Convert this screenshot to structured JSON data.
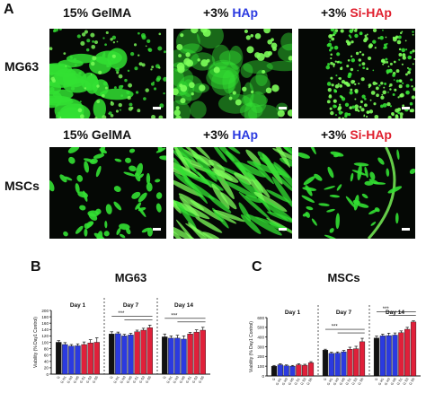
{
  "panel_a": {
    "letter": "A",
    "columns": [
      {
        "prefix": "15% GelMA",
        "highlight": "",
        "highlight_color": ""
      },
      {
        "prefix": "+3% ",
        "highlight": "HAp",
        "highlight_color": "#2b3ae0"
      },
      {
        "prefix": "+3% ",
        "highlight": "Si-HAp",
        "highlight_color": "#e0202f"
      }
    ],
    "rows": [
      "MG63",
      "MSCs"
    ]
  },
  "colors": {
    "black_bar": "#111111",
    "blue_bar": "#2b3ae0",
    "red_bar": "#e0203a",
    "cells": "#33e033",
    "cells_bright": "#7dff5a"
  },
  "chart_data": [
    {
      "type": "bar",
      "panel_letter": "B",
      "title": "MG63",
      "ylabel": "Viability (% Day1 Control)",
      "ylim": [
        0,
        200
      ],
      "yticks": [
        0,
        20,
        40,
        60,
        80,
        100,
        120,
        140,
        160,
        180,
        200
      ],
      "groups": [
        {
          "label": "Day 1",
          "categories": [
            "G",
            "G H1",
            "G H3",
            "G H5",
            "G S1",
            "G S3",
            "G S5"
          ],
          "values": [
            100,
            93,
            88,
            89,
            93,
            98,
            100
          ],
          "errors": [
            5,
            6,
            5,
            6,
            8,
            10,
            14
          ]
        },
        {
          "label": "Day 7",
          "categories": [
            "G",
            "G H1",
            "G H3",
            "G H5",
            "G S1",
            "G S3",
            "G S5"
          ],
          "values": [
            126,
            127,
            120,
            123,
            133,
            138,
            146
          ],
          "errors": [
            7,
            5,
            5,
            5,
            5,
            6,
            8
          ]
        },
        {
          "label": "Day 14",
          "categories": [
            "G",
            "G H1",
            "G H3",
            "G H5",
            "G S1",
            "G S3",
            "G S5"
          ],
          "values": [
            117,
            113,
            113,
            110,
            126,
            132,
            138
          ],
          "errors": [
            9,
            7,
            9,
            10,
            5,
            7,
            9
          ]
        }
      ],
      "significance": "***"
    },
    {
      "type": "bar",
      "panel_letter": "C",
      "title": "MSCs",
      "ylabel": "Viability (% Day1 Control)",
      "ylim": [
        0,
        600
      ],
      "yticks": [
        0,
        100,
        200,
        300,
        400,
        500,
        600
      ],
      "groups": [
        {
          "label": "Day 1",
          "categories": [
            "G",
            "G H1",
            "G H3",
            "G H5",
            "G S1",
            "G S3",
            "G S5"
          ],
          "values": [
            100,
            115,
            105,
            100,
            115,
            110,
            135
          ],
          "errors": [
            8,
            10,
            8,
            8,
            10,
            10,
            12
          ]
        },
        {
          "label": "Day 7",
          "categories": [
            "G",
            "G H1",
            "G H3",
            "G H5",
            "G S1",
            "G S3",
            "G S5"
          ],
          "values": [
            265,
            232,
            235,
            248,
            275,
            280,
            352
          ],
          "errors": [
            10,
            12,
            12,
            14,
            20,
            25,
            35
          ]
        },
        {
          "label": "Day 14",
          "categories": [
            "G",
            "G H1",
            "G H3",
            "G H5",
            "G S1",
            "G S3",
            "G S5"
          ],
          "values": [
            390,
            412,
            415,
            420,
            445,
            480,
            555
          ],
          "errors": [
            20,
            18,
            25,
            22,
            18,
            20,
            12
          ]
        }
      ],
      "significance": "***"
    }
  ]
}
